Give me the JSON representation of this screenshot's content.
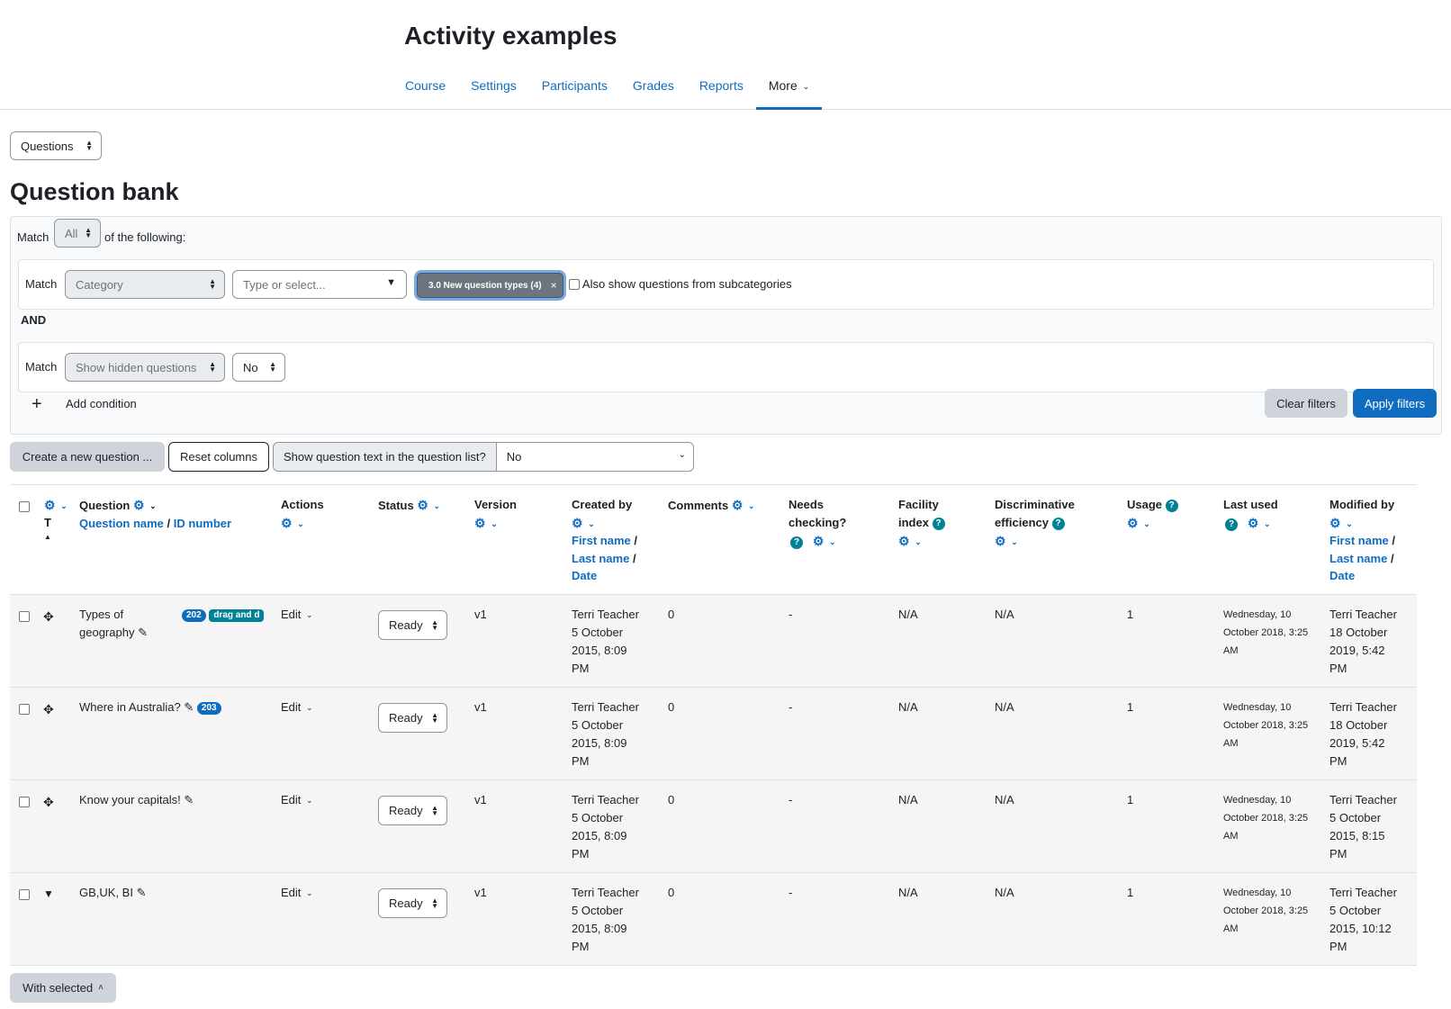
{
  "header": {
    "course_title": "Activity examples",
    "nav": [
      {
        "label": "Course"
      },
      {
        "label": "Settings"
      },
      {
        "label": "Participants"
      },
      {
        "label": "Grades"
      },
      {
        "label": "Reports"
      },
      {
        "label": "More"
      }
    ]
  },
  "page_select": {
    "value": "Questions"
  },
  "page_title": "Question bank",
  "filters": {
    "match_label": "Match",
    "match_value": "All",
    "of_following": "of the following:",
    "condition1": {
      "match_label": "Match",
      "type_value": "Category",
      "input_placeholder": "Type or select...",
      "tag": "3.0 New question types (4)",
      "tag_close": "×",
      "subcat_label": "Also show questions from subcategories"
    },
    "and_label": "AND",
    "condition2": {
      "match_label": "Match",
      "type_value": "Show hidden questions",
      "value": "No"
    },
    "add_condition": "Add condition",
    "clear_filters": "Clear filters",
    "apply_filters": "Apply filters"
  },
  "toolbar": {
    "create": "Create a new question ...",
    "reset_columns": "Reset columns",
    "show_text_label": "Show question text in the question list?",
    "show_text_value": "No"
  },
  "table": {
    "headers": {
      "t": "T",
      "question": "Question",
      "question_name": "Question name",
      "sep": "/",
      "id_number": "ID number",
      "actions": "Actions",
      "status": "Status",
      "version": "Version",
      "created_by": "Created by",
      "first_name": "First name",
      "last_name": "Last name",
      "date": "Date",
      "comments": "Comments",
      "needs_checking_1": "Needs",
      "needs_checking_2": "checking?",
      "facility_1": "Facility",
      "facility_2": "index",
      "discrim_1": "Discriminative",
      "discrim_2": "efficiency",
      "usage": "Usage",
      "last_used": "Last used",
      "modified_by": "Modified by"
    },
    "rows": [
      {
        "name_line1": "Types of",
        "name_line2": "geography",
        "badge_id": "202",
        "badge_type": "drag and d",
        "action": "Edit",
        "status": "Ready",
        "version": "v1",
        "created_name": "Terri Teacher",
        "created_l1": "5 October",
        "created_l2": "2015, 8:09",
        "created_l3": "PM",
        "comments": "0",
        "needs_checking": "-",
        "facility": "N/A",
        "discrim": "N/A",
        "usage": "1",
        "last_used_l1": "Wednesday, 10",
        "last_used_l2": "October 2018, 3:25",
        "last_used_l3": "AM",
        "modified_name": "Terri Teacher",
        "modified_l1": "18 October",
        "modified_l2": "2019, 5:42",
        "modified_l3": "PM"
      },
      {
        "name_line1": "Where in Australia?",
        "badge_id": "203",
        "action": "Edit",
        "status": "Ready",
        "version": "v1",
        "created_name": "Terri Teacher",
        "created_l1": "5 October",
        "created_l2": "2015, 8:09",
        "created_l3": "PM",
        "comments": "0",
        "needs_checking": "-",
        "facility": "N/A",
        "discrim": "N/A",
        "usage": "1",
        "last_used_l1": "Wednesday, 10",
        "last_used_l2": "October 2018, 3:25",
        "last_used_l3": "AM",
        "modified_name": "Terri Teacher",
        "modified_l1": "18 October",
        "modified_l2": "2019, 5:42",
        "modified_l3": "PM"
      },
      {
        "name_line1": "Know your capitals!",
        "action": "Edit",
        "status": "Ready",
        "version": "v1",
        "created_name": "Terri Teacher",
        "created_l1": "5 October",
        "created_l2": "2015, 8:09",
        "created_l3": "PM",
        "comments": "0",
        "needs_checking": "-",
        "facility": "N/A",
        "discrim": "N/A",
        "usage": "1",
        "last_used_l1": "Wednesday, 10",
        "last_used_l2": "October 2018, 3:25",
        "last_used_l3": "AM",
        "modified_name": "Terri Teacher",
        "modified_l1": "5 October",
        "modified_l2": "2015, 8:15",
        "modified_l3": "PM"
      },
      {
        "name_line1": "GB,UK, BI",
        "action": "Edit",
        "status": "Ready",
        "version": "v1",
        "created_name": "Terri Teacher",
        "created_l1": "5 October",
        "created_l2": "2015, 8:09",
        "created_l3": "PM",
        "comments": "0",
        "needs_checking": "-",
        "facility": "N/A",
        "discrim": "N/A",
        "usage": "1",
        "last_used_l1": "Wednesday, 10",
        "last_used_l2": "October 2018, 3:25",
        "last_used_l3": "AM",
        "modified_name": "Terri Teacher",
        "modified_l1": "5 October",
        "modified_l2": "2015, 10:12",
        "modified_l3": "PM"
      }
    ]
  },
  "with_selected": "With selected",
  "colors": {
    "link": "#0f6cbf",
    "primary": "#0f6cbf",
    "help": "#008196",
    "row_bg": "#f5f5f5"
  }
}
